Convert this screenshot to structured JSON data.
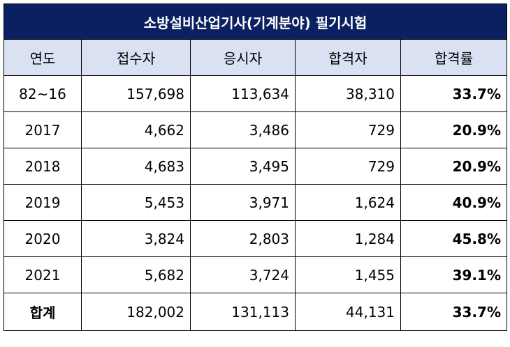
{
  "title": "소방설비산업기사(기계분야) 필기시험",
  "headers": [
    "연도",
    "접수자",
    "응시자",
    "합격자",
    "합격률"
  ],
  "rows": [
    {
      "year": "82~16",
      "applicants": "157,698",
      "examinees": "113,634",
      "passers": "38,310",
      "rate": "33.7%"
    },
    {
      "year": "2017",
      "applicants": "4,662",
      "examinees": "3,486",
      "passers": "729",
      "rate": "20.9%"
    },
    {
      "year": "2018",
      "applicants": "4,683",
      "examinees": "3,495",
      "passers": "729",
      "rate": "20.9%"
    },
    {
      "year": "2019",
      "applicants": "5,453",
      "examinees": "3,971",
      "passers": "1,624",
      "rate": "40.9%"
    },
    {
      "year": "2020",
      "applicants": "3,824",
      "examinees": "2,803",
      "passers": "1,284",
      "rate": "45.8%"
    },
    {
      "year": "2021",
      "applicants": "5,682",
      "examinees": "3,724",
      "passers": "1,455",
      "rate": "39.1%"
    }
  ],
  "total": {
    "label": "합계",
    "applicants": "182,002",
    "examinees": "131,113",
    "passers": "44,131",
    "rate": "33.7%"
  },
  "colors": {
    "title_bg": "#0b2060",
    "header_bg": "#d9e1f2",
    "title_text": "#ffffff"
  }
}
